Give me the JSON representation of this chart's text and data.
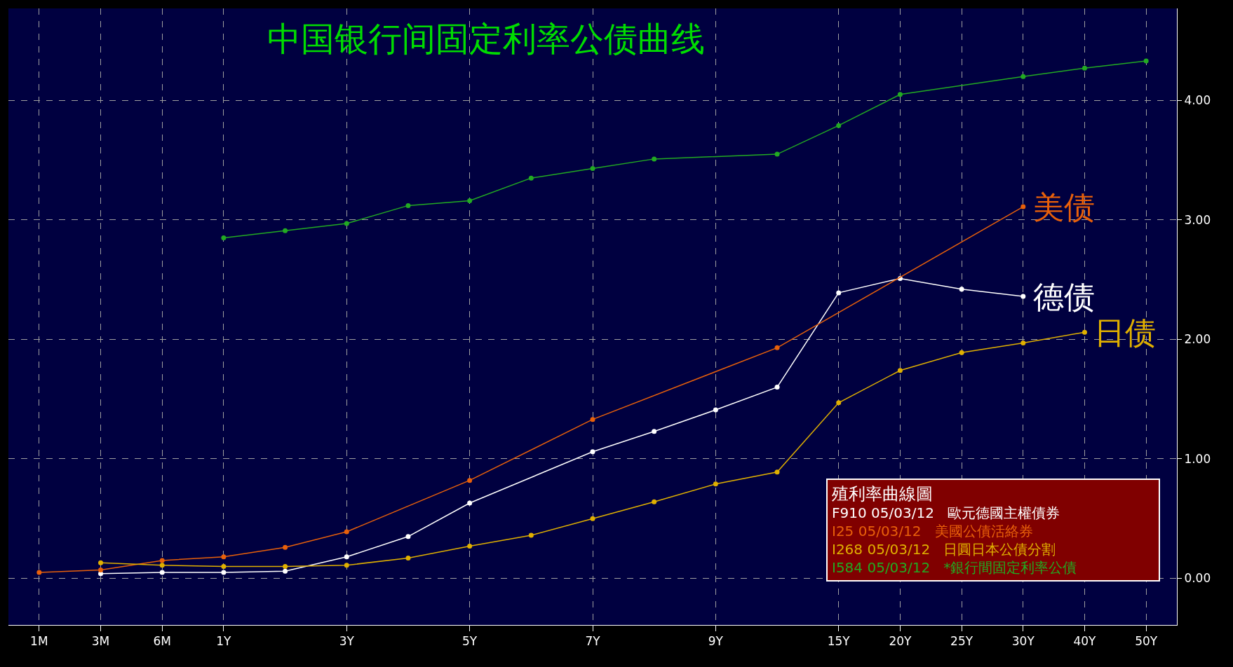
{
  "chart_data": {
    "type": "line",
    "title": "中国银行间固定利率公债曲线",
    "categories": [
      "1M",
      "3M",
      "6M",
      "1Y",
      null,
      "3Y",
      null,
      "5Y",
      null,
      "7Y",
      null,
      "9Y",
      null,
      "15Y",
      "20Y",
      "25Y",
      "30Y",
      "40Y",
      "50Y"
    ],
    "series": [
      {
        "name": "德债",
        "color": "#ffffff",
        "values": [
          null,
          0.04,
          0.05,
          0.05,
          0.06,
          0.18,
          0.35,
          0.63,
          null,
          1.06,
          1.23,
          1.41,
          1.6,
          2.39,
          2.51,
          2.42,
          2.36,
          null,
          null
        ]
      },
      {
        "name": "美债",
        "color": "#e8600a",
        "values": [
          0.05,
          0.07,
          0.15,
          0.18,
          0.26,
          0.39,
          null,
          0.82,
          null,
          1.33,
          null,
          null,
          1.93,
          null,
          null,
          null,
          3.11,
          null,
          null
        ]
      },
      {
        "name": "日债",
        "color": "#e0b000",
        "values": [
          null,
          0.13,
          0.11,
          0.1,
          0.1,
          0.11,
          0.17,
          0.27,
          0.36,
          0.5,
          0.64,
          0.79,
          0.89,
          1.47,
          1.74,
          1.89,
          1.97,
          2.06,
          null
        ]
      },
      {
        "color": "#22aa22",
        "values": [
          null,
          null,
          null,
          2.85,
          2.91,
          2.97,
          3.12,
          3.16,
          3.35,
          3.43,
          3.51,
          null,
          3.55,
          3.79,
          4.05,
          null,
          4.2,
          4.27,
          4.33
        ]
      }
    ],
    "annotations": [
      "殖利率曲線圖",
      "F910 05/03/12   歐元德國主權債券",
      "I25 05/03/12   美國公債活絡券",
      "I268 05/03/12   日圓日本公債分割",
      "I584 05/03/12   *銀行間固定利率公債"
    ],
    "ylim": [
      -0.39,
      4.77
    ],
    "yticks": [
      {
        "value": 0,
        "label": "0.00"
      },
      {
        "value": 1,
        "label": "1.00"
      },
      {
        "value": 2,
        "label": "2.00"
      },
      {
        "value": 3,
        "label": "3.00"
      },
      {
        "value": 4,
        "label": "4.00"
      }
    ],
    "grid": true,
    "legend": false,
    "marker": "circle",
    "line_style": "solid"
  }
}
